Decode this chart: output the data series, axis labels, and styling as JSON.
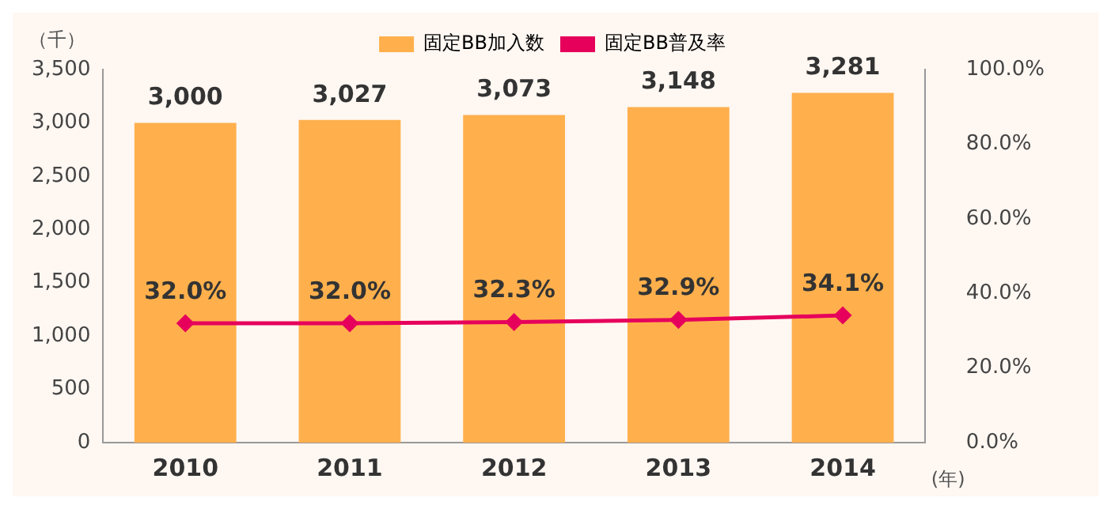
{
  "chart_data": {
    "type": "bar",
    "categories": [
      "2010",
      "2011",
      "2012",
      "2013",
      "2014"
    ],
    "series": [
      {
        "name": "固定BB加入数",
        "color": "#ffb04c",
        "values": [
          3000,
          3027,
          3073,
          3148,
          3281
        ],
        "value_labels": [
          "3,000",
          "3,027",
          "3,073",
          "3,148",
          "3,281"
        ]
      },
      {
        "name": "固定BB普及率",
        "type": "line",
        "axis": "y2",
        "color": "#e6005c",
        "values": [
          32.0,
          32.0,
          32.3,
          32.9,
          34.1
        ],
        "value_labels": [
          "32.0%",
          "32.0%",
          "32.3%",
          "32.9%",
          "34.1%"
        ],
        "marker": "diamond"
      }
    ],
    "ylabel": "（千）",
    "xlabel": "(年)",
    "ylim": [
      0,
      3500
    ],
    "yticks": [
      0,
      500,
      {
        "value": 1000,
        "label": "1,000"
      },
      {
        "value": 1500,
        "label": "1,500"
      },
      {
        "value": 2000,
        "label": "2,000"
      },
      {
        "value": 2500,
        "label": "2,500"
      },
      {
        "value": 3000,
        "label": "3,000"
      },
      {
        "value": 3500,
        "label": "3,500"
      }
    ],
    "y2lim": [
      0,
      100
    ],
    "y2ticks": [
      {
        "value": 0,
        "label": "0.0%"
      },
      {
        "value": 20,
        "label": "20.0%"
      },
      {
        "value": 40,
        "label": "40.0%"
      },
      {
        "value": 60,
        "label": "60.0%"
      },
      {
        "value": 80,
        "label": "80.0%"
      },
      {
        "value": 100,
        "label": "100.0%"
      }
    ],
    "legend": "top",
    "grid": false
  }
}
